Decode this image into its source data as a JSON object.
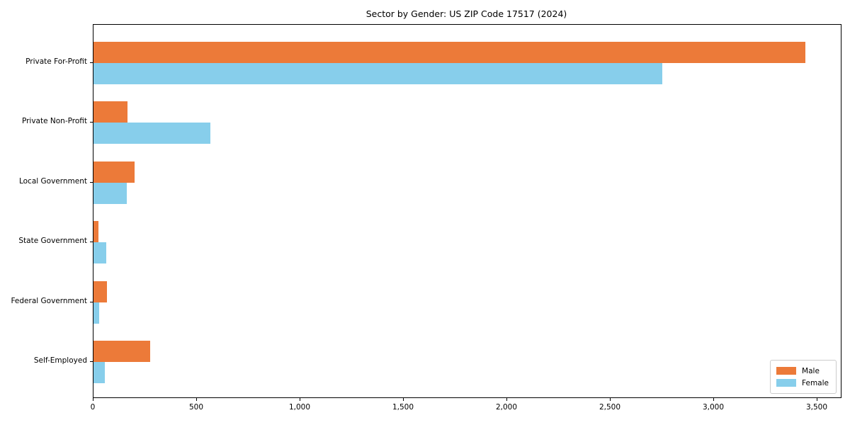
{
  "title": "Sector by Gender: US ZIP Code 17517 (2024)",
  "chart_data": {
    "type": "bar",
    "orientation": "horizontal",
    "title": "Sector by Gender: US ZIP Code 17517 (2024)",
    "xlabel": "",
    "ylabel": "",
    "categories": [
      "Private For-Profit",
      "Private Non-Profit",
      "Local Government",
      "State Government",
      "Federal Government",
      "Self-Employed"
    ],
    "series": [
      {
        "name": "Male",
        "color": "#EC7A39",
        "values": [
          3440,
          165,
          200,
          25,
          65,
          275
        ]
      },
      {
        "name": "Female",
        "color": "#87CEEB",
        "values": [
          2750,
          565,
          160,
          63,
          28,
          54
        ]
      }
    ],
    "xlim": [
      0,
      3613
    ],
    "xticks": [
      0,
      500,
      1000,
      1500,
      2000,
      2500,
      3000,
      3500
    ],
    "xtick_labels": [
      "0",
      "500",
      "1,000",
      "1,500",
      "2,000",
      "2,500",
      "3,000",
      "3,500"
    ],
    "grid": false,
    "legend_position": "lower right"
  }
}
